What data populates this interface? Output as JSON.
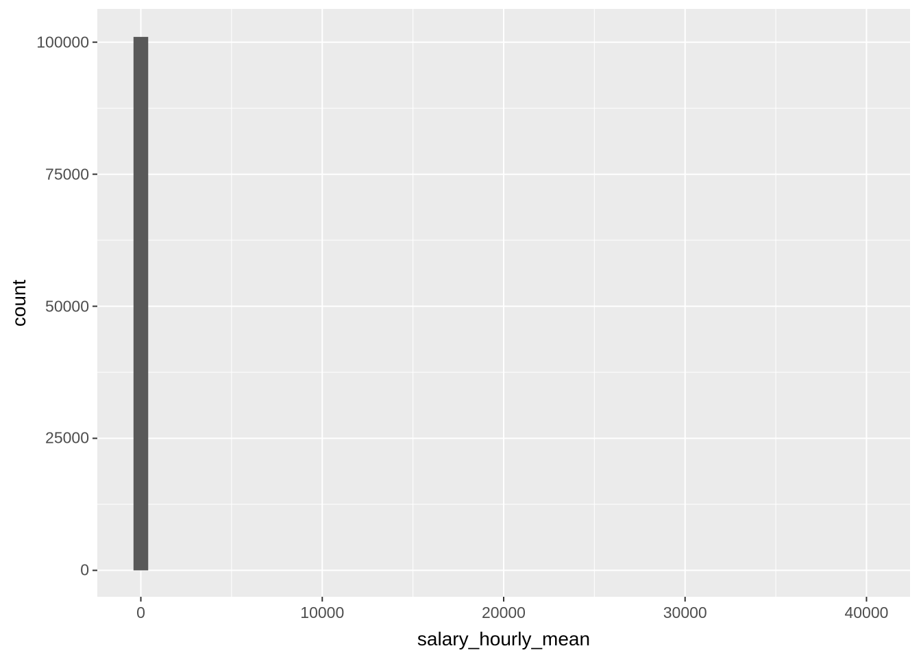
{
  "chart_data": {
    "type": "bar",
    "subtype": "histogram",
    "title": "",
    "xlabel": "salary_hourly_mean",
    "ylabel": "count",
    "bars": [
      {
        "x_center": 0,
        "bin_width": 810,
        "count": 101000
      }
    ],
    "x_axis": {
      "major_ticks": [
        0,
        10000,
        20000,
        30000,
        40000
      ],
      "major_labels": [
        "0",
        "10000",
        "20000",
        "30000",
        "40000"
      ],
      "minor_ticks": [
        5000,
        15000,
        25000,
        35000
      ],
      "lim": [
        -2400,
        42400
      ]
    },
    "y_axis": {
      "major_ticks": [
        0,
        25000,
        50000,
        75000,
        100000
      ],
      "major_labels": [
        "0",
        "25000",
        "50000",
        "75000",
        "100000"
      ],
      "minor_ticks": [
        12500,
        37500,
        62500,
        87500
      ],
      "lim": [
        -5000,
        106300
      ]
    },
    "grid": true,
    "legend_position": "none"
  },
  "colors": {
    "figure_bg": "#ffffff",
    "panel_bg": "#ebebeb",
    "grid_major": "#ffffff",
    "grid_minor": "#ffffff",
    "bar_fill": "#595959",
    "tick_mark": "#333333",
    "tick_label": "#4d4d4d",
    "axis_title": "#000000"
  }
}
